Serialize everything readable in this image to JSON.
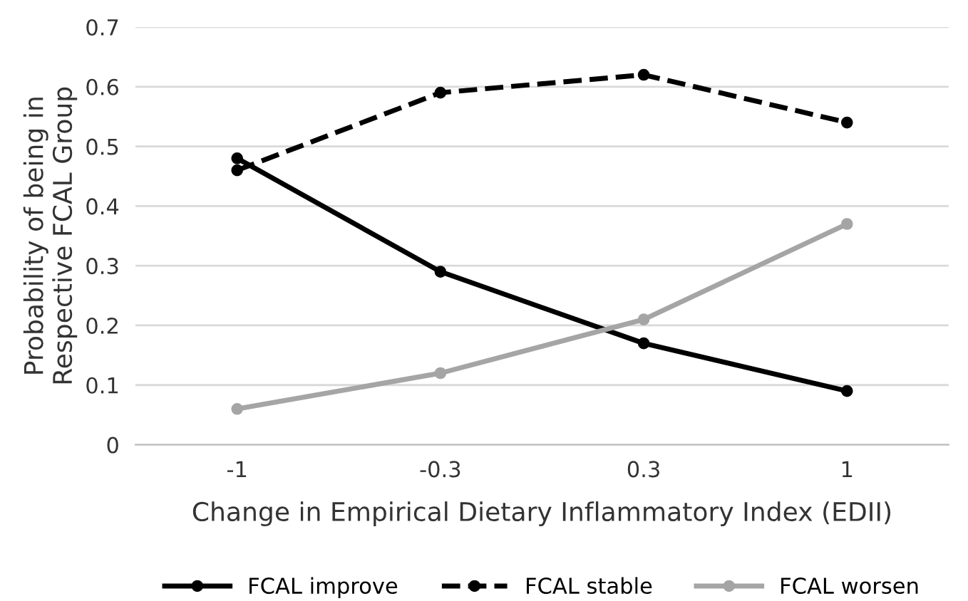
{
  "chart_data": {
    "type": "line",
    "xlabel": "Change in Empirical Dietary Inflammatory Index (EDII)",
    "ylabel": "Probability of being in\nRespective FCAL Group",
    "categories": [
      "-1",
      "-0.3",
      "0.3",
      "1"
    ],
    "series": [
      {
        "name": "FCAL improve",
        "color": "#000000",
        "line_style": "solid",
        "values": [
          0.48,
          0.29,
          0.17,
          0.09
        ]
      },
      {
        "name": "FCAL stable",
        "color": "#000000",
        "line_style": "dashed",
        "values": [
          0.46,
          0.59,
          0.62,
          0.54
        ]
      },
      {
        "name": "FCAL worsen",
        "color": "#a5a5a5",
        "line_style": "solid",
        "values": [
          0.06,
          0.12,
          0.21,
          0.37
        ]
      }
    ],
    "ylim": [
      0,
      0.7
    ],
    "yticks": [
      0,
      0.1,
      0.2,
      0.3,
      0.4,
      0.5,
      0.6,
      0.7
    ],
    "grid": "y",
    "legend": "bottom",
    "marker": "circle"
  }
}
